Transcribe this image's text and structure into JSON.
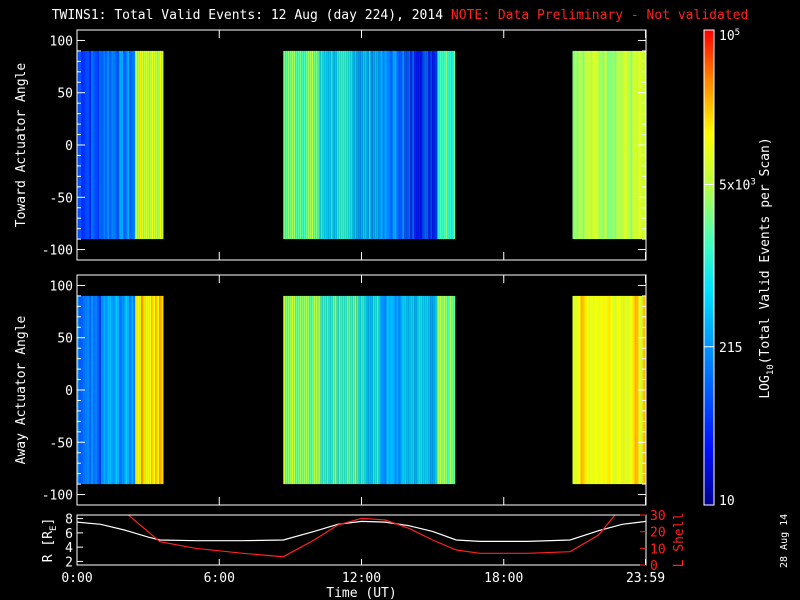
{
  "header": {
    "title": "TWINS1: Total Valid Events: 12 Aug (day 224), 2014",
    "note": "NOTE: Data Preliminary - Not validated"
  },
  "date_stamp": "28 Aug 14",
  "colorbar": {
    "label": "LOG",
    "label_sub": "10",
    "label_rest": "(Total Valid Events per Scan)",
    "ticks": [
      {
        "text": "10",
        "value": 10
      },
      {
        "text": "215",
        "value": 215
      },
      {
        "text": "5x10",
        "sup": "3",
        "value": 5000
      },
      {
        "text": "10",
        "sup": "5",
        "value": 100000
      }
    ],
    "range": [
      10,
      100000
    ]
  },
  "colors": {
    "accent": "#ff2020",
    "axes": "#ffffff",
    "background": "#000000"
  },
  "chart_data": [
    {
      "type": "heatmap",
      "name": "toward",
      "ylabel": "Toward Actuator Angle",
      "ylim": [
        -110,
        110
      ],
      "yticks": [
        -100,
        -50,
        0,
        50,
        100
      ],
      "xlim": [
        0,
        24
      ],
      "angle_range": [
        -90,
        90
      ],
      "colorscale": "log",
      "data_blocks": [
        {
          "start": 0.0,
          "end": 1.1,
          "level": 0.22
        },
        {
          "start": 1.1,
          "end": 2.45,
          "level": 0.3
        },
        {
          "start": 2.45,
          "end": 3.65,
          "level": 0.72
        },
        {
          "start": 8.7,
          "end": 10.2,
          "level": 0.62
        },
        {
          "start": 10.2,
          "end": 11.8,
          "level": 0.45
        },
        {
          "start": 11.8,
          "end": 12.8,
          "level": 0.38
        },
        {
          "start": 12.8,
          "end": 13.8,
          "level": 0.3
        },
        {
          "start": 13.8,
          "end": 15.2,
          "level": 0.2
        },
        {
          "start": 15.2,
          "end": 15.95,
          "level": 0.58
        },
        {
          "start": 20.9,
          "end": 24.0,
          "level": 0.68
        }
      ]
    },
    {
      "type": "heatmap",
      "name": "away",
      "ylabel": "Away Actuator Angle",
      "ylim": [
        -110,
        110
      ],
      "yticks": [
        -100,
        -50,
        0,
        50,
        100
      ],
      "xlim": [
        0,
        24
      ],
      "angle_range": [
        -90,
        90
      ],
      "colorscale": "log",
      "data_blocks": [
        {
          "start": 0.0,
          "end": 1.1,
          "level": 0.25
        },
        {
          "start": 1.1,
          "end": 2.45,
          "level": 0.35
        },
        {
          "start": 2.45,
          "end": 3.65,
          "level": 0.8
        },
        {
          "start": 8.7,
          "end": 10.2,
          "level": 0.66
        },
        {
          "start": 10.2,
          "end": 11.8,
          "level": 0.55
        },
        {
          "start": 11.8,
          "end": 12.8,
          "level": 0.45
        },
        {
          "start": 12.8,
          "end": 13.8,
          "level": 0.35
        },
        {
          "start": 13.8,
          "end": 15.2,
          "level": 0.42
        },
        {
          "start": 15.2,
          "end": 15.95,
          "level": 0.62
        },
        {
          "start": 20.9,
          "end": 24.0,
          "level": 0.78
        }
      ]
    },
    {
      "type": "line",
      "name": "orbit",
      "xlabel": "Time (UT)",
      "ylabel": "R [R",
      "ylabel_sub": "E",
      "ylabel_end": "]",
      "ylim": [
        1.5,
        8.5
      ],
      "yticks": [
        2,
        4,
        6,
        8
      ],
      "y2label": "L Shell",
      "y2lim": [
        0,
        30
      ],
      "y2ticks": [
        0,
        10,
        20,
        30
      ],
      "xlim": [
        0,
        24
      ],
      "xtick_labels": [
        "0:00",
        "6:00",
        "12:00",
        "18:00",
        "23:59"
      ],
      "xtick_values": [
        0,
        6,
        12,
        18,
        23.98
      ],
      "series": [
        {
          "color": "#ffffff",
          "axis": "left",
          "x": [
            0,
            1,
            2,
            3,
            3.5,
            5,
            7,
            8.7,
            10,
            11,
            12,
            13,
            14,
            15,
            16,
            17,
            18,
            19,
            20.8,
            22,
            23,
            24
          ],
          "y": [
            7.5,
            7.2,
            6.4,
            5.4,
            5.0,
            4.9,
            4.9,
            5.0,
            6.2,
            7.2,
            7.6,
            7.5,
            7.0,
            6.2,
            5.0,
            4.8,
            4.8,
            4.8,
            5.0,
            6.3,
            7.2,
            7.6
          ]
        },
        {
          "color": "#ff2020",
          "axis": "right",
          "x": [
            2.0,
            3.0,
            3.5,
            5.0,
            7.0,
            8.7,
            10.0,
            11.0,
            12.0,
            13.0,
            14.0,
            15.0,
            16.0,
            17.0,
            18.0,
            19.0,
            20.8,
            22.0,
            22.8
          ],
          "y": [
            32,
            20,
            14,
            10,
            7,
            5,
            15,
            24,
            28,
            27,
            22,
            15,
            9,
            7,
            7,
            7,
            8,
            18,
            32
          ]
        }
      ]
    }
  ]
}
